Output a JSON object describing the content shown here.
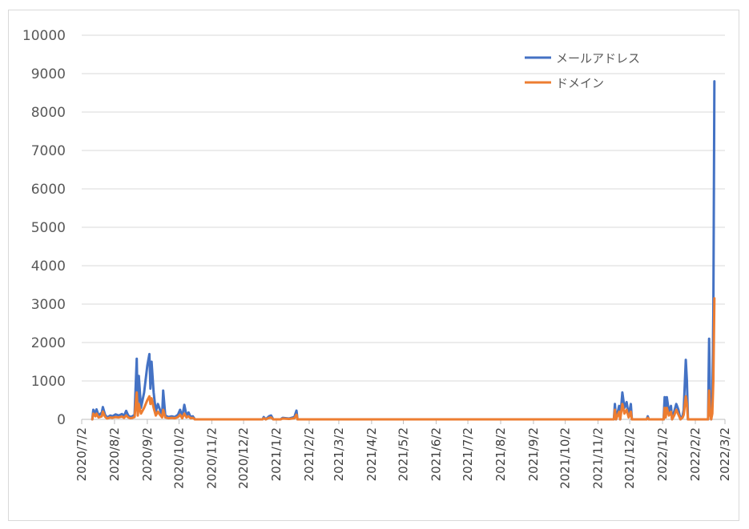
{
  "chart_data": {
    "type": "line",
    "title": "",
    "xlabel": "",
    "ylabel": "",
    "ylim": [
      0,
      10000
    ],
    "yticks": [
      0,
      1000,
      2000,
      3000,
      4000,
      5000,
      6000,
      7000,
      8000,
      9000,
      10000
    ],
    "xticks": [
      "2020/7/2",
      "2020/8/2",
      "2020/9/2",
      "2020/10/2",
      "2020/11/2",
      "2020/12/2",
      "2021/1/2",
      "2021/2/2",
      "2021/3/2",
      "2021/4/2",
      "2021/5/2",
      "2021/6/2",
      "2021/7/2",
      "2021/8/2",
      "2021/9/2",
      "2021/10/2",
      "2021/11/2",
      "2021/12/2",
      "2022/1/2",
      "2022/2/2",
      "2022/3/2"
    ],
    "xlim": [
      "2020/7/2",
      "2022/3/2"
    ],
    "grid": true,
    "legend_position": "top-right",
    "series": [
      {
        "name": "メールアドレス",
        "color": "#4472c4",
        "points": [
          [
            "2020/7/12",
            0
          ],
          [
            "2020/7/13",
            250
          ],
          [
            "2020/7/15",
            150
          ],
          [
            "2020/7/16",
            260
          ],
          [
            "2020/7/18",
            100
          ],
          [
            "2020/7/21",
            180
          ],
          [
            "2020/7/22",
            320
          ],
          [
            "2020/7/24",
            120
          ],
          [
            "2020/7/26",
            50
          ],
          [
            "2020/7/29",
            100
          ],
          [
            "2020/7/31",
            80
          ],
          [
            "2020/8/3",
            130
          ],
          [
            "2020/8/6",
            100
          ],
          [
            "2020/8/9",
            140
          ],
          [
            "2020/8/11",
            90
          ],
          [
            "2020/8/13",
            220
          ],
          [
            "2020/8/15",
            100
          ],
          [
            "2020/8/17",
            60
          ],
          [
            "2020/8/19",
            80
          ],
          [
            "2020/8/21",
            120
          ],
          [
            "2020/8/23",
            1580
          ],
          [
            "2020/8/24",
            200
          ],
          [
            "2020/8/25",
            1130
          ],
          [
            "2020/8/27",
            300
          ],
          [
            "2020/8/30",
            700
          ],
          [
            "2020/9/2",
            1400
          ],
          [
            "2020/9/4",
            1700
          ],
          [
            "2020/9/5",
            800
          ],
          [
            "2020/9/6",
            1500
          ],
          [
            "2020/9/8",
            700
          ],
          [
            "2020/9/10",
            200
          ],
          [
            "2020/9/12",
            400
          ],
          [
            "2020/9/14",
            250
          ],
          [
            "2020/9/16",
            100
          ],
          [
            "2020/9/17",
            750
          ],
          [
            "2020/9/19",
            100
          ],
          [
            "2020/9/22",
            60
          ],
          [
            "2020/9/25",
            80
          ],
          [
            "2020/9/28",
            60
          ],
          [
            "2020/10/1",
            120
          ],
          [
            "2020/10/3",
            250
          ],
          [
            "2020/10/5",
            60
          ],
          [
            "2020/10/7",
            380
          ],
          [
            "2020/10/9",
            100
          ],
          [
            "2020/10/11",
            180
          ],
          [
            "2020/10/13",
            60
          ],
          [
            "2020/10/15",
            80
          ],
          [
            "2020/10/17",
            0
          ],
          [
            "2020/12/20",
            0
          ],
          [
            "2020/12/21",
            60
          ],
          [
            "2020/12/23",
            0
          ],
          [
            "2020/12/26",
            80
          ],
          [
            "2020/12/28",
            100
          ],
          [
            "2020/12/30",
            0
          ],
          [
            "2021/1/6",
            0
          ],
          [
            "2021/1/8",
            40
          ],
          [
            "2021/1/14",
            20
          ],
          [
            "2021/1/19",
            60
          ],
          [
            "2021/1/21",
            230
          ],
          [
            "2021/1/22",
            0
          ],
          [
            "2021/11/17",
            0
          ],
          [
            "2021/11/18",
            400
          ],
          [
            "2021/11/19",
            0
          ],
          [
            "2021/11/22",
            350
          ],
          [
            "2021/11/23",
            0
          ],
          [
            "2021/11/25",
            700
          ],
          [
            "2021/11/27",
            300
          ],
          [
            "2021/11/29",
            450
          ],
          [
            "2021/12/1",
            100
          ],
          [
            "2021/12/3",
            400
          ],
          [
            "2021/12/4",
            0
          ],
          [
            "2021/12/18",
            0
          ],
          [
            "2021/12/19",
            80
          ],
          [
            "2021/12/20",
            0
          ],
          [
            "2022/1/3",
            0
          ],
          [
            "2022/1/4",
            580
          ],
          [
            "2022/1/5",
            100
          ],
          [
            "2022/1/6",
            580
          ],
          [
            "2022/1/8",
            200
          ],
          [
            "2022/1/10",
            350
          ],
          [
            "2022/1/11",
            0
          ],
          [
            "2022/1/13",
            200
          ],
          [
            "2022/1/15",
            400
          ],
          [
            "2022/1/17",
            250
          ],
          [
            "2022/1/19",
            0
          ],
          [
            "2022/1/21",
            100
          ],
          [
            "2022/1/22",
            250
          ],
          [
            "2022/1/24",
            1550
          ],
          [
            "2022/1/25",
            1000
          ],
          [
            "2022/1/26",
            0
          ],
          [
            "2022/2/14",
            0
          ],
          [
            "2022/2/15",
            2100
          ],
          [
            "2022/2/16",
            400
          ],
          [
            "2022/2/17",
            0
          ],
          [
            "2022/2/18",
            400
          ],
          [
            "2022/2/19",
            2800
          ],
          [
            "2022/2/20",
            8800
          ]
        ]
      },
      {
        "name": "ドメイン",
        "color": "#ed7d31",
        "points": [
          [
            "2020/7/12",
            0
          ],
          [
            "2020/7/13",
            150
          ],
          [
            "2020/7/15",
            80
          ],
          [
            "2020/7/16",
            150
          ],
          [
            "2020/7/18",
            50
          ],
          [
            "2020/7/21",
            80
          ],
          [
            "2020/7/22",
            200
          ],
          [
            "2020/7/24",
            70
          ],
          [
            "2020/7/26",
            20
          ],
          [
            "2020/7/29",
            50
          ],
          [
            "2020/7/31",
            40
          ],
          [
            "2020/8/3",
            60
          ],
          [
            "2020/8/6",
            50
          ],
          [
            "2020/8/9",
            70
          ],
          [
            "2020/8/11",
            40
          ],
          [
            "2020/8/13",
            100
          ],
          [
            "2020/8/15",
            50
          ],
          [
            "2020/8/17",
            30
          ],
          [
            "2020/8/19",
            40
          ],
          [
            "2020/8/21",
            60
          ],
          [
            "2020/8/23",
            700
          ],
          [
            "2020/8/24",
            100
          ],
          [
            "2020/8/25",
            400
          ],
          [
            "2020/8/27",
            150
          ],
          [
            "2020/8/30",
            300
          ],
          [
            "2020/9/2",
            500
          ],
          [
            "2020/9/4",
            600
          ],
          [
            "2020/9/5",
            400
          ],
          [
            "2020/9/6",
            550
          ],
          [
            "2020/9/8",
            300
          ],
          [
            "2020/9/10",
            100
          ],
          [
            "2020/9/12",
            200
          ],
          [
            "2020/9/14",
            120
          ],
          [
            "2020/9/16",
            50
          ],
          [
            "2020/9/17",
            250
          ],
          [
            "2020/9/19",
            50
          ],
          [
            "2020/9/22",
            30
          ],
          [
            "2020/9/25",
            40
          ],
          [
            "2020/9/28",
            30
          ],
          [
            "2020/10/1",
            60
          ],
          [
            "2020/10/3",
            120
          ],
          [
            "2020/10/5",
            30
          ],
          [
            "2020/10/7",
            150
          ],
          [
            "2020/10/9",
            50
          ],
          [
            "2020/10/11",
            80
          ],
          [
            "2020/10/13",
            30
          ],
          [
            "2020/10/15",
            40
          ],
          [
            "2020/10/17",
            0
          ],
          [
            "2020/12/20",
            0
          ],
          [
            "2020/12/21",
            30
          ],
          [
            "2020/12/23",
            0
          ],
          [
            "2020/12/26",
            40
          ],
          [
            "2020/12/28",
            50
          ],
          [
            "2020/12/30",
            0
          ],
          [
            "2021/1/6",
            0
          ],
          [
            "2021/1/8",
            20
          ],
          [
            "2021/1/14",
            10
          ],
          [
            "2021/1/19",
            30
          ],
          [
            "2021/1/21",
            120
          ],
          [
            "2021/1/22",
            0
          ],
          [
            "2021/11/17",
            0
          ],
          [
            "2021/11/18",
            250
          ],
          [
            "2021/11/19",
            0
          ],
          [
            "2021/11/22",
            200
          ],
          [
            "2021/11/23",
            0
          ],
          [
            "2021/11/25",
            400
          ],
          [
            "2021/11/27",
            150
          ],
          [
            "2021/11/29",
            250
          ],
          [
            "2021/12/1",
            50
          ],
          [
            "2021/12/3",
            200
          ],
          [
            "2021/12/4",
            0
          ],
          [
            "2021/12/18",
            0
          ],
          [
            "2021/12/19",
            40
          ],
          [
            "2021/12/20",
            0
          ],
          [
            "2022/1/3",
            0
          ],
          [
            "2022/1/4",
            300
          ],
          [
            "2022/1/5",
            50
          ],
          [
            "2022/1/6",
            300
          ],
          [
            "2022/1/8",
            100
          ],
          [
            "2022/1/10",
            200
          ],
          [
            "2022/1/11",
            0
          ],
          [
            "2022/1/13",
            100
          ],
          [
            "2022/1/15",
            250
          ],
          [
            "2022/1/17",
            120
          ],
          [
            "2022/1/19",
            0
          ],
          [
            "2022/1/21",
            50
          ],
          [
            "2022/1/22",
            120
          ],
          [
            "2022/1/24",
            600
          ],
          [
            "2022/1/25",
            400
          ],
          [
            "2022/1/26",
            0
          ],
          [
            "2022/2/14",
            0
          ],
          [
            "2022/2/15",
            750
          ],
          [
            "2022/2/16",
            150
          ],
          [
            "2022/2/17",
            0
          ],
          [
            "2022/2/18",
            150
          ],
          [
            "2022/2/19",
            1000
          ],
          [
            "2022/2/20",
            3150
          ]
        ]
      }
    ]
  }
}
